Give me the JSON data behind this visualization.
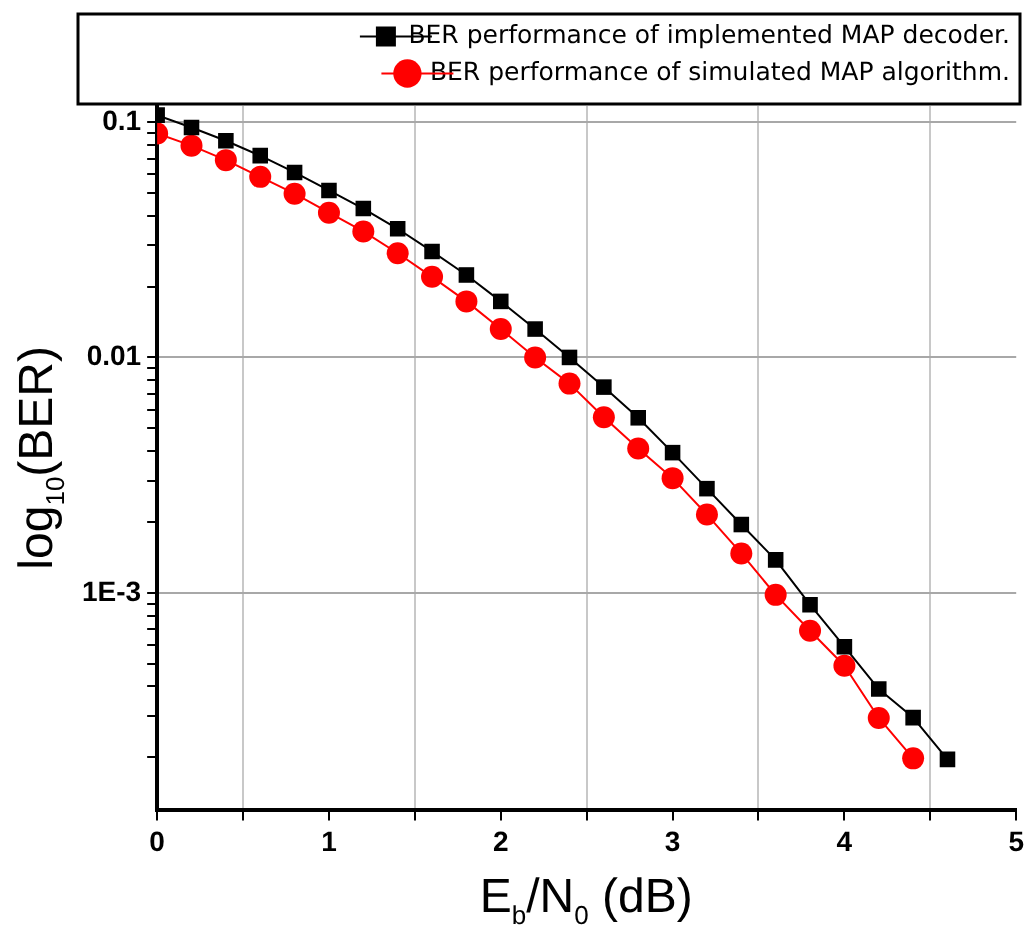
{
  "chart_data": {
    "type": "line",
    "xlabel": "E$_{b}$/N$_{0}$ (dB)",
    "ylabel": "log$_{10}$(BER)",
    "log": "y",
    "grid": true,
    "legend": "top right",
    "line_style": "solid",
    "x": [
      0,
      0.2,
      0.4,
      0.6,
      0.8,
      1.0,
      1.2,
      1.4,
      1.6,
      1.8,
      2.0,
      2.2,
      2.4,
      2.6,
      2.8,
      3.0,
      3.2,
      3.4,
      3.6,
      3.8,
      4.0,
      4.2,
      4.4,
      4.6
    ],
    "series": [
      {
        "name": "BER performance of implemented MAP decoder.",
        "color": "#000000",
        "marker": "square",
        "values": [
          0.107,
          0.0948,
          0.0833,
          0.072,
          0.0611,
          0.0512,
          0.0429,
          0.0352,
          0.0282,
          0.0224,
          0.0173,
          0.0132,
          0.01,
          0.00748,
          0.00554,
          0.00394,
          0.00277,
          0.00195,
          0.00138,
          0.00089,
          0.00059,
          0.00039,
          0.000295,
          0.000196
        ]
      },
      {
        "name": "BER performance of simulated MAP algorithm.",
        "color": "#ff0000",
        "marker": "circle",
        "values": [
          0.0894,
          0.0794,
          0.0689,
          0.0585,
          0.0496,
          0.0412,
          0.0343,
          0.0277,
          0.022,
          0.0173,
          0.0132,
          0.01,
          0.00774,
          0.00557,
          0.0041,
          0.00307,
          0.00215,
          0.00147,
          0.00098,
          0.00069,
          0.00049,
          0.000294,
          0.000198,
          null
        ]
      }
    ],
    "xlim": [
      0,
      5
    ],
    "xticks": [
      0,
      {
        "value": 0.5,
        "label": null
      },
      1,
      {
        "value": 1.5,
        "label": null
      },
      2,
      {
        "value": 2.5,
        "label": null
      },
      3,
      {
        "value": 3.5,
        "label": null
      },
      4,
      {
        "value": 4.5,
        "label": null
      },
      5
    ],
    "ylim": [
      0.000119,
      0.117
    ],
    "yticks": [
      {
        "value": 0.0002,
        "label": null
      },
      {
        "value": 0.0003,
        "label": null
      },
      {
        "value": 0.0004,
        "label": null
      },
      {
        "value": 0.0005,
        "label": null
      },
      {
        "value": 0.0006,
        "label": null
      },
      {
        "value": 0.0007,
        "label": null
      },
      {
        "value": 0.0008,
        "label": null
      },
      {
        "value": 0.0009,
        "label": null
      },
      {
        "value": 0.001,
        "label": "1E-3"
      },
      {
        "value": 0.002,
        "label": null
      },
      {
        "value": 0.003,
        "label": null
      },
      {
        "value": 0.004,
        "label": null
      },
      {
        "value": 0.005,
        "label": null
      },
      {
        "value": 0.006,
        "label": null
      },
      {
        "value": 0.007,
        "label": null
      },
      {
        "value": 0.008,
        "label": null
      },
      {
        "value": 0.009,
        "label": null
      },
      0.01,
      {
        "value": 0.02,
        "label": null
      },
      {
        "value": 0.03,
        "label": null
      },
      {
        "value": 0.04,
        "label": null
      },
      {
        "value": 0.05,
        "label": null
      },
      {
        "value": 0.06,
        "label": null
      },
      {
        "value": 0.07,
        "label": null
      },
      {
        "value": 0.08,
        "label": null
      },
      {
        "value": 0.09,
        "label": null
      },
      0.1
    ]
  }
}
